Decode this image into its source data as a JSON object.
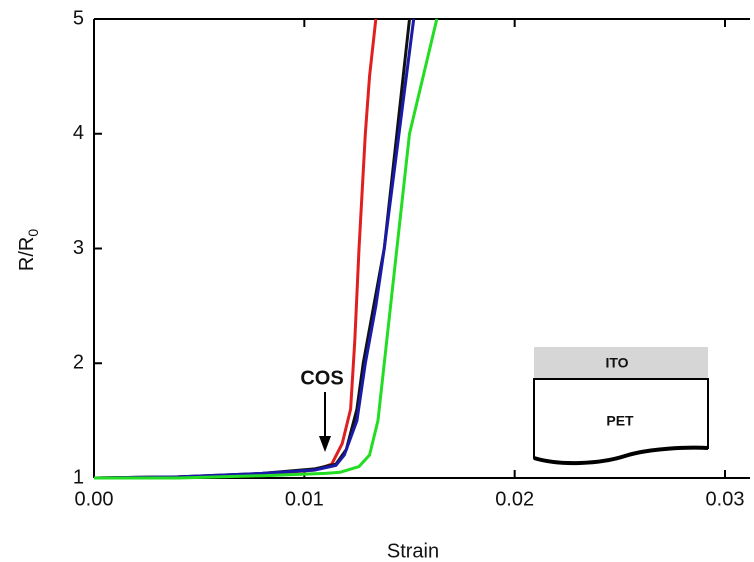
{
  "chart_data": {
    "type": "line",
    "xlabel": "Strain",
    "ylabel": {
      "text": "R/R",
      "subscript": "0"
    },
    "xlim": [
      0,
      0.03
    ],
    "ylim": [
      1,
      5
    ],
    "xticks": [
      {
        "value": 0,
        "label": "0.00"
      },
      0.01,
      0.02,
      0.03
    ],
    "yticks": [
      1,
      2,
      3,
      4,
      5
    ],
    "series": [
      {
        "color": "#e02020",
        "x": [
          0,
          0.004,
          0.008,
          0.0105,
          0.0113,
          0.0118,
          0.0122,
          0.0124,
          0.0126,
          0.0129,
          0.0131,
          0.0134
        ],
        "values": [
          1,
          1.01,
          1.03,
          1.07,
          1.12,
          1.3,
          1.6,
          2.2,
          3,
          4,
          4.5,
          5
        ]
      },
      {
        "color": "#111111",
        "x": [
          0,
          0.004,
          0.008,
          0.0105,
          0.0115,
          0.012,
          0.0125,
          0.0128,
          0.0133,
          0.0138,
          0.0144,
          0.015
        ],
        "values": [
          1,
          1.01,
          1.04,
          1.08,
          1.12,
          1.25,
          1.6,
          2,
          2.5,
          3,
          4,
          5
        ]
      },
      {
        "color": "#1a1aa8",
        "x": [
          0,
          0.004,
          0.008,
          0.0105,
          0.0115,
          0.0119,
          0.0125,
          0.0129,
          0.0134,
          0.0138,
          0.0145,
          0.0152
        ],
        "values": [
          1,
          1.01,
          1.04,
          1.07,
          1.11,
          1.2,
          1.5,
          2,
          2.5,
          3,
          4,
          5
        ]
      },
      {
        "color": "#22dd22",
        "x": [
          0,
          0.004,
          0.008,
          0.011,
          0.0117,
          0.0126,
          0.0131,
          0.0135,
          0.0138,
          0.0144,
          0.015,
          0.0163
        ],
        "values": [
          1,
          1,
          1.02,
          1.04,
          1.05,
          1.1,
          1.2,
          1.5,
          2,
          3,
          4,
          5
        ]
      }
    ],
    "annotations": {
      "cos": "COS",
      "ito": "ITO",
      "pet": "PET"
    }
  }
}
